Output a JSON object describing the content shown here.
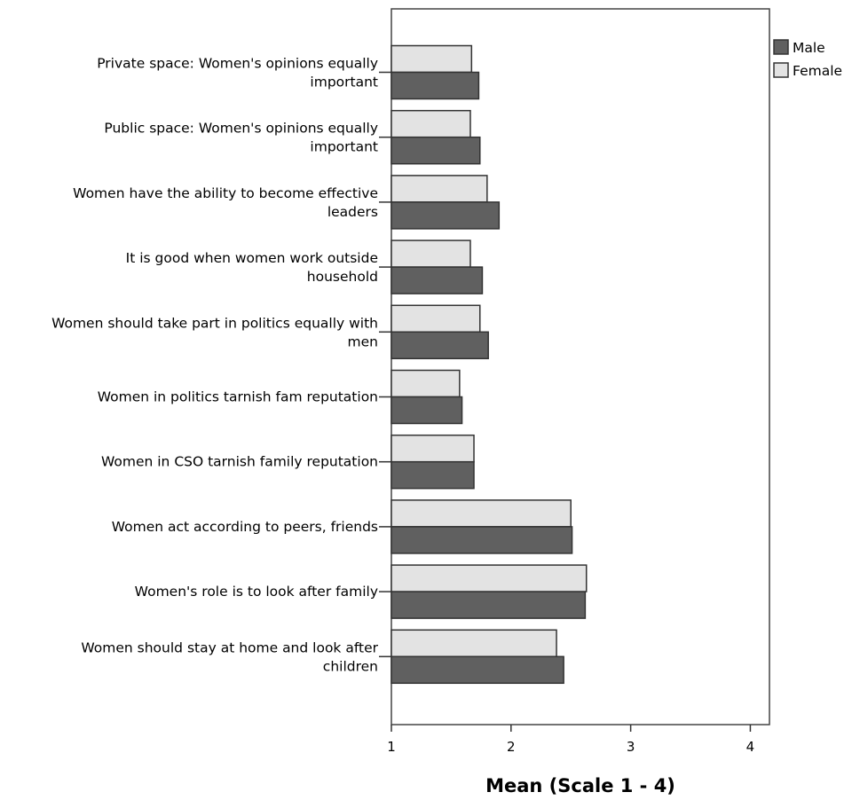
{
  "chart_data": {
    "type": "bar",
    "orientation": "horizontal",
    "categories": [
      [
        "Private space: Women's opinions equally",
        "important"
      ],
      [
        "Public space: Women's opinions equally",
        "important"
      ],
      [
        "Women have the ability to become effective",
        "leaders"
      ],
      [
        "It is good when women work outside",
        "household"
      ],
      [
        "Women should take part in politics equally with",
        "men"
      ],
      [
        "Women in politics tarnish fam reputation"
      ],
      [
        "Women in CSO tarnish family reputation"
      ],
      [
        "Women act according to peers, friends"
      ],
      [
        "Women's role is to look after family"
      ],
      [
        "Women should stay at home and look after",
        "children"
      ]
    ],
    "series": [
      {
        "name": "Female",
        "color": "#e3e3e3",
        "values": [
          1.67,
          1.66,
          1.8,
          1.66,
          1.74,
          1.57,
          1.69,
          2.5,
          2.63,
          2.38
        ]
      },
      {
        "name": "Male",
        "color": "#606060",
        "values": [
          1.73,
          1.74,
          1.9,
          1.76,
          1.81,
          1.59,
          1.69,
          2.51,
          2.62,
          2.44
        ]
      }
    ],
    "xlabel": "Mean (Scale 1 - 4)",
    "xlim": [
      1,
      4.16
    ],
    "xticks": [
      "1",
      "2",
      "3",
      "4"
    ],
    "legend": {
      "position": "top-right",
      "entries": [
        {
          "label": "Male",
          "color": "#606060"
        },
        {
          "label": "Female",
          "color": "#e3e3e3"
        }
      ]
    },
    "grid": false
  }
}
